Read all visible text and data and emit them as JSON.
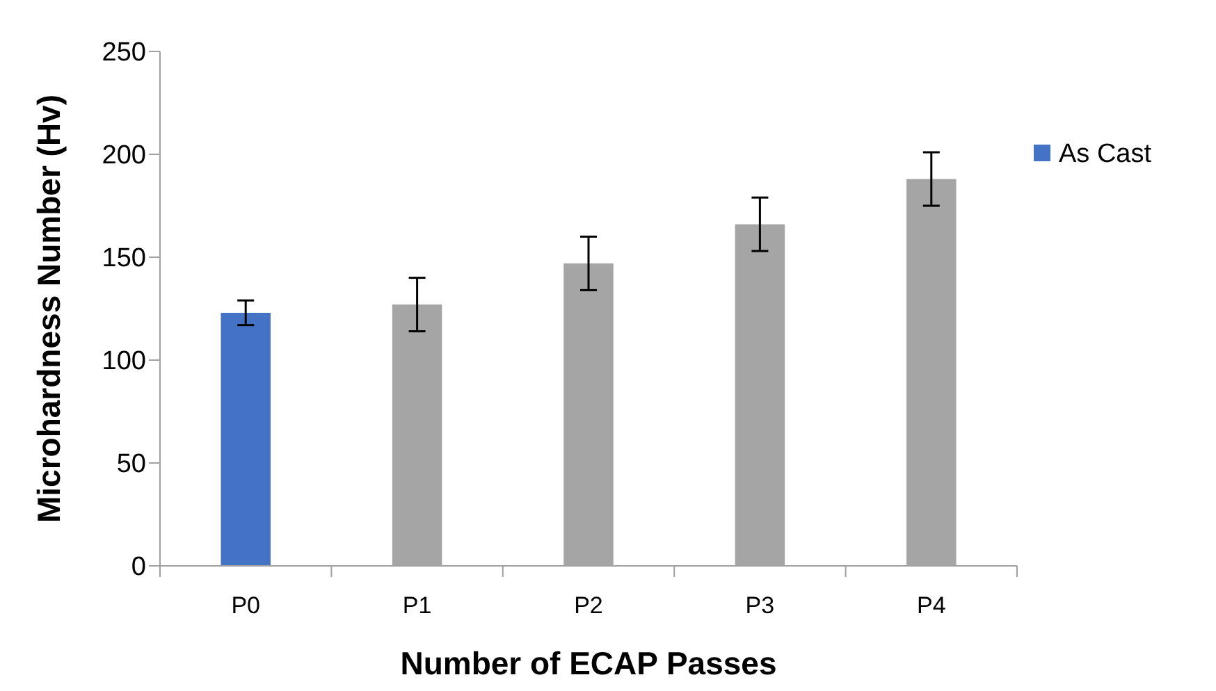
{
  "chart_data": {
    "type": "bar",
    "xlabel": "Number of ECAP Passes",
    "ylabel": "Microhardness Number (Hv)",
    "categories": [
      "P0",
      "P1",
      "P2",
      "P3",
      "P4"
    ],
    "series": [
      {
        "name": "As Cast",
        "color": "#4472c4",
        "values": [
          123,
          null,
          null,
          null,
          null
        ],
        "errors": [
          6,
          null,
          null,
          null,
          null
        ]
      },
      {
        "color": "#a5a5a5",
        "values": [
          null,
          127,
          147,
          166,
          188
        ],
        "errors": [
          null,
          13,
          13,
          13,
          13
        ]
      }
    ],
    "ylim": [
      0,
      250
    ],
    "yticks": [
      0,
      50,
      100,
      150,
      200,
      250
    ],
    "grid": false,
    "legend": "right"
  }
}
